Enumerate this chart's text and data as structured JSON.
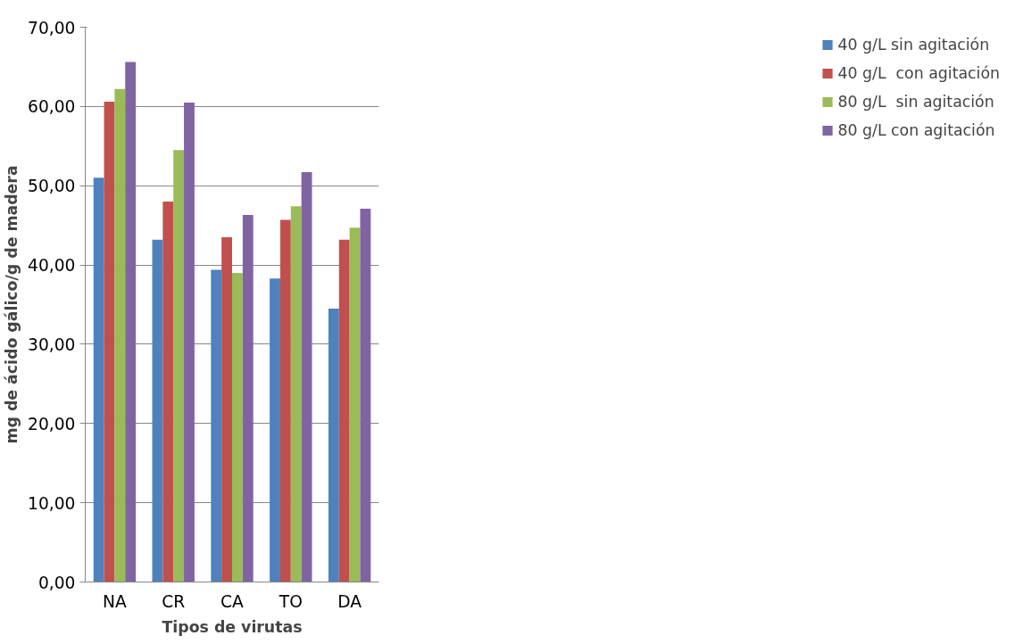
{
  "chart_data": {
    "type": "bar",
    "xlabel": "Tipos de virutas",
    "ylabel": "mg de ácido gálico/g de madera",
    "categories": [
      "NA",
      "CR",
      "CA",
      "TO",
      "DA"
    ],
    "series": [
      {
        "name": "40 g/L sin agitación",
        "color": "#4f81bd",
        "values": [
          51.0,
          43.2,
          39.4,
          38.3,
          34.5
        ]
      },
      {
        "name": "40 g/L  con agitación",
        "color": "#c0504d",
        "values": [
          60.6,
          48.0,
          43.5,
          45.7,
          43.2
        ]
      },
      {
        "name": "80 g/L  sin agitación",
        "color": "#9bbb59",
        "values": [
          62.2,
          54.5,
          39.0,
          47.4,
          44.7
        ]
      },
      {
        "name": "80 g/L con agitación",
        "color": "#8064a2",
        "values": [
          65.6,
          60.5,
          46.3,
          51.7,
          47.1
        ]
      }
    ],
    "ylim": [
      0,
      70
    ],
    "yticks": [
      {
        "value": 0,
        "label": "0,00"
      },
      {
        "value": 10,
        "label": "10,00"
      },
      {
        "value": 20,
        "label": "20,00"
      },
      {
        "value": 30,
        "label": "30,00"
      },
      {
        "value": 40,
        "label": "40,00"
      },
      {
        "value": 50,
        "label": "50,00"
      },
      {
        "value": 60,
        "label": "60,00"
      },
      {
        "value": 70,
        "label": "70,00"
      }
    ],
    "grid": "y",
    "legend": "right"
  }
}
